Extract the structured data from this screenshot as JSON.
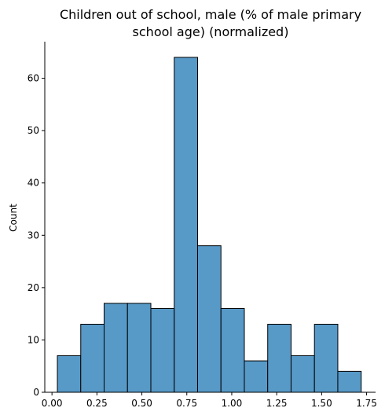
{
  "chart_data": {
    "type": "bar",
    "subtype": "histogram",
    "title_lines": [
      "Children out of school, male (% of male primary",
      "school age) (normalized)"
    ],
    "xlabel": "",
    "ylabel": "Count",
    "bin_start": 0.03,
    "bin_width": 0.13,
    "counts": [
      7,
      13,
      17,
      17,
      16,
      64,
      28,
      16,
      6,
      13,
      7,
      13,
      4
    ],
    "xlim": [
      -0.04,
      1.8
    ],
    "ylim": [
      0,
      67
    ],
    "x_ticks": [
      0.0,
      0.25,
      0.5,
      0.75,
      1.0,
      1.25,
      1.5,
      1.75
    ],
    "x_tick_labels": [
      "0.00",
      "0.25",
      "0.50",
      "0.75",
      "1.00",
      "1.25",
      "1.50",
      "1.75"
    ],
    "y_ticks": [
      0,
      10,
      20,
      30,
      40,
      50,
      60
    ],
    "y_tick_labels": [
      "0",
      "10",
      "20",
      "30",
      "40",
      "50",
      "60"
    ],
    "bar_color": "#5799c7",
    "edge_color": "#000000",
    "grid": false,
    "legend": false
  }
}
